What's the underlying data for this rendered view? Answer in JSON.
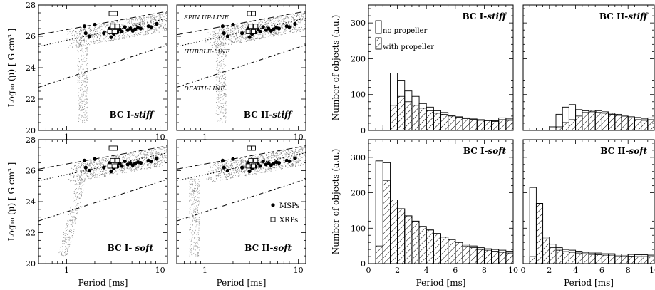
{
  "chart_data": [
    {
      "panel": "a",
      "type": "scatter",
      "title_prefix": "BC I-",
      "title_suffix": "stiff",
      "xscale": "log",
      "xlim": [
        0.5,
        12
      ],
      "ylim": [
        20,
        28
      ],
      "xticks": [
        1,
        10
      ],
      "yticks": [
        20,
        22,
        24,
        26,
        28
      ],
      "xlabel": "",
      "ylabel": "Log₁₀ (μ) [ G cm³ ]",
      "lines": [
        {
          "name": "SPIN UP-LINE",
          "style": "dashed",
          "x": [
            0.5,
            12
          ],
          "y": [
            26.1,
            27.6
          ]
        },
        {
          "name": "HUBBLE-LINE",
          "style": "dotted",
          "x": [
            0.5,
            12
          ],
          "y": [
            25.35,
            27.15
          ]
        },
        {
          "name": "DEATH-LINE",
          "style": "dashdot",
          "x": [
            0.5,
            12
          ],
          "y": [
            22.75,
            25.45
          ]
        }
      ],
      "msps": [
        [
          1.55,
          26.65
        ],
        [
          1.6,
          26.2
        ],
        [
          1.75,
          26.0
        ],
        [
          2.0,
          26.75
        ],
        [
          2.5,
          26.2
        ],
        [
          2.9,
          26.5
        ],
        [
          3.0,
          25.95
        ],
        [
          3.2,
          26.15
        ],
        [
          3.3,
          26.35
        ],
        [
          3.5,
          26.25
        ],
        [
          3.7,
          26.45
        ],
        [
          3.9,
          26.3
        ],
        [
          4.2,
          26.6
        ],
        [
          4.5,
          26.4
        ],
        [
          4.8,
          26.5
        ],
        [
          5.1,
          26.35
        ],
        [
          5.4,
          26.45
        ],
        [
          5.8,
          26.55
        ],
        [
          6.2,
          26.5
        ],
        [
          7.5,
          26.65
        ],
        [
          8.0,
          26.6
        ],
        [
          9.2,
          26.8
        ]
      ],
      "xrps": [
        [
          3.0,
          27.45
        ],
        [
          3.3,
          27.45
        ],
        [
          3.1,
          26.65
        ],
        [
          3.5,
          26.65
        ],
        [
          2.9,
          26.3
        ],
        [
          3.3,
          26.3
        ]
      ]
    },
    {
      "panel": "b",
      "type": "scatter",
      "title_prefix": "BC II-",
      "title_suffix": "stiff",
      "xscale": "log",
      "xlim": [
        0.5,
        12
      ],
      "ylim": [
        20,
        28
      ],
      "xticks": [
        1,
        10
      ],
      "yticks": [
        20,
        22,
        24,
        26,
        28
      ],
      "xlabel": "",
      "ylabel": "",
      "annotations": [
        "SPIN UP-LINE",
        "HUBBLE-LINE",
        "DEATH-LINE"
      ],
      "lines": [
        {
          "style": "dashed",
          "x": [
            0.5,
            12
          ],
          "y": [
            26.1,
            27.6
          ]
        },
        {
          "style": "dotted",
          "x": [
            0.5,
            12
          ],
          "y": [
            25.35,
            27.15
          ]
        },
        {
          "style": "dashdot",
          "x": [
            0.5,
            12
          ],
          "y": [
            22.75,
            25.45
          ]
        }
      ],
      "msps": [
        [
          1.55,
          26.65
        ],
        [
          1.6,
          26.2
        ],
        [
          1.75,
          26.0
        ],
        [
          2.0,
          26.75
        ],
        [
          2.5,
          26.2
        ],
        [
          2.9,
          26.5
        ],
        [
          3.0,
          25.95
        ],
        [
          3.2,
          26.15
        ],
        [
          3.3,
          26.35
        ],
        [
          3.5,
          26.25
        ],
        [
          3.7,
          26.45
        ],
        [
          3.9,
          26.3
        ],
        [
          4.2,
          26.6
        ],
        [
          4.5,
          26.4
        ],
        [
          4.8,
          26.5
        ],
        [
          5.1,
          26.35
        ],
        [
          5.4,
          26.45
        ],
        [
          5.8,
          26.55
        ],
        [
          6.2,
          26.5
        ],
        [
          7.5,
          26.65
        ],
        [
          8.0,
          26.6
        ],
        [
          9.2,
          26.8
        ]
      ],
      "xrps": [
        [
          3.0,
          27.45
        ],
        [
          3.3,
          27.45
        ],
        [
          3.1,
          26.65
        ],
        [
          3.5,
          26.65
        ],
        [
          2.9,
          26.3
        ],
        [
          3.3,
          26.3
        ]
      ]
    },
    {
      "panel": "c",
      "type": "scatter",
      "title_prefix": "BC I- ",
      "title_suffix": "soft",
      "xscale": "log",
      "xlim": [
        0.5,
        12
      ],
      "ylim": [
        20,
        28
      ],
      "xticks": [
        1,
        10
      ],
      "yticks": [
        20,
        22,
        24,
        26,
        28
      ],
      "xlabel": "Period [ms]",
      "ylabel": "Log₁₀ (μ) [ G cm³ ]",
      "lines": [
        {
          "style": "dashed",
          "x": [
            0.5,
            12
          ],
          "y": [
            26.1,
            27.6
          ]
        },
        {
          "style": "dotted",
          "x": [
            0.5,
            12
          ],
          "y": [
            25.35,
            27.15
          ]
        },
        {
          "style": "dashdot",
          "x": [
            0.5,
            12
          ],
          "y": [
            22.75,
            25.45
          ]
        }
      ],
      "msps": [
        [
          1.55,
          26.65
        ],
        [
          1.6,
          26.2
        ],
        [
          1.75,
          26.0
        ],
        [
          2.0,
          26.75
        ],
        [
          2.5,
          26.2
        ],
        [
          2.9,
          26.5
        ],
        [
          3.0,
          25.95
        ],
        [
          3.2,
          26.15
        ],
        [
          3.3,
          26.35
        ],
        [
          3.5,
          26.25
        ],
        [
          3.7,
          26.45
        ],
        [
          3.9,
          26.3
        ],
        [
          4.2,
          26.6
        ],
        [
          4.5,
          26.4
        ],
        [
          4.8,
          26.5
        ],
        [
          5.1,
          26.35
        ],
        [
          5.4,
          26.45
        ],
        [
          5.8,
          26.55
        ],
        [
          6.2,
          26.5
        ],
        [
          7.5,
          26.65
        ],
        [
          8.0,
          26.6
        ],
        [
          9.2,
          26.8
        ]
      ],
      "xrps": [
        [
          3.0,
          27.45
        ],
        [
          3.3,
          27.45
        ],
        [
          3.1,
          26.65
        ],
        [
          3.5,
          26.65
        ],
        [
          2.9,
          26.3
        ],
        [
          3.3,
          26.3
        ]
      ]
    },
    {
      "panel": "d",
      "type": "scatter",
      "title_prefix": "BC II-",
      "title_suffix": "soft",
      "xscale": "log",
      "xlim": [
        0.5,
        12
      ],
      "ylim": [
        20,
        28
      ],
      "xticks": [
        1,
        10
      ],
      "yticks": [
        20,
        22,
        24,
        26,
        28
      ],
      "xlabel": "Period [ms]",
      "ylabel": "",
      "legend": {
        "placement": "lower-right",
        "entries": [
          "MSPs",
          "XRPs"
        ]
      },
      "lines": [
        {
          "style": "dashed",
          "x": [
            0.5,
            12
          ],
          "y": [
            26.1,
            27.6
          ]
        },
        {
          "style": "dotted",
          "x": [
            0.5,
            12
          ],
          "y": [
            25.35,
            27.15
          ]
        },
        {
          "style": "dashdot",
          "x": [
            0.5,
            12
          ],
          "y": [
            22.75,
            25.45
          ]
        }
      ],
      "msps": [
        [
          1.55,
          26.65
        ],
        [
          1.6,
          26.2
        ],
        [
          1.75,
          26.0
        ],
        [
          2.0,
          26.75
        ],
        [
          2.5,
          26.2
        ],
        [
          2.9,
          26.5
        ],
        [
          3.0,
          25.95
        ],
        [
          3.2,
          26.15
        ],
        [
          3.3,
          26.35
        ],
        [
          3.5,
          26.25
        ],
        [
          3.7,
          26.45
        ],
        [
          3.9,
          26.3
        ],
        [
          4.2,
          26.6
        ],
        [
          4.5,
          26.4
        ],
        [
          4.8,
          26.5
        ],
        [
          5.1,
          26.35
        ],
        [
          5.4,
          26.45
        ],
        [
          5.8,
          26.55
        ],
        [
          6.2,
          26.5
        ],
        [
          7.5,
          26.65
        ],
        [
          8.0,
          26.6
        ],
        [
          9.2,
          26.8
        ]
      ],
      "xrps": [
        [
          3.0,
          27.45
        ],
        [
          3.3,
          27.45
        ],
        [
          3.1,
          26.65
        ],
        [
          3.5,
          26.65
        ],
        [
          2.9,
          26.3
        ],
        [
          3.3,
          26.3
        ]
      ]
    },
    {
      "panel": "e",
      "type": "bar",
      "title_prefix": "BC I-",
      "title_suffix": "stiff",
      "xlim": [
        0,
        10
      ],
      "ylim": [
        0,
        350
      ],
      "yticks": [
        0,
        100,
        200,
        300
      ],
      "xticks": [
        0,
        2,
        4,
        6,
        8,
        10
      ],
      "xlabel": "",
      "ylabel": "Number of objects (a.u.)",
      "legend": {
        "placement": "top-left",
        "entries": [
          "no propeller",
          "with propeller"
        ]
      },
      "bin_edges": [
        0.5,
        1,
        1.5,
        2,
        2.5,
        3,
        3.5,
        4,
        4.5,
        5,
        5.5,
        6,
        6.5,
        7,
        7.5,
        8,
        8.5,
        9,
        9.5,
        10
      ],
      "series": [
        {
          "name": "no propeller",
          "values": [
            0,
            15,
            160,
            140,
            110,
            95,
            75,
            65,
            55,
            50,
            42,
            38,
            35,
            32,
            30,
            28,
            27,
            35,
            32
          ]
        },
        {
          "name": "with propeller",
          "values": [
            0,
            0,
            70,
            95,
            80,
            70,
            62,
            55,
            48,
            45,
            40,
            36,
            33,
            30,
            28,
            27,
            25,
            30,
            28
          ]
        }
      ]
    },
    {
      "panel": "f",
      "type": "bar",
      "title_prefix": "BC II-",
      "title_suffix": "stiff",
      "xlim": [
        0,
        10
      ],
      "ylim": [
        0,
        350
      ],
      "yticks": [
        0,
        100,
        200,
        300
      ],
      "xticks": [
        0,
        2,
        4,
        6,
        8,
        10
      ],
      "xlabel": "",
      "ylabel": "",
      "bin_edges": [
        0.5,
        1,
        1.5,
        2,
        2.5,
        3,
        3.5,
        4,
        4.5,
        5,
        5.5,
        6,
        6.5,
        7,
        7.5,
        8,
        8.5,
        9,
        9.5,
        10
      ],
      "series": [
        {
          "name": "no propeller",
          "values": [
            0,
            0,
            0,
            10,
            45,
            65,
            72,
            58,
            55,
            52,
            50,
            48,
            45,
            42,
            40,
            38,
            36,
            32,
            35
          ]
        },
        {
          "name": "with propeller",
          "values": [
            0,
            0,
            0,
            0,
            10,
            22,
            30,
            40,
            50,
            56,
            55,
            52,
            48,
            45,
            40,
            35,
            30,
            28,
            30
          ]
        }
      ]
    },
    {
      "panel": "g",
      "type": "bar",
      "title_prefix": "BC I-",
      "title_suffix": "soft",
      "xlim": [
        0,
        10
      ],
      "ylim": [
        0,
        350
      ],
      "yticks": [
        0,
        100,
        200,
        300
      ],
      "xticks": [
        0,
        2,
        4,
        6,
        8,
        10
      ],
      "xlabel": "Period [ms]",
      "ylabel": "Number of objects (a.u.)",
      "bin_edges": [
        0.5,
        1,
        1.5,
        2,
        2.5,
        3,
        3.5,
        4,
        4.5,
        5,
        5.5,
        6,
        6.5,
        7,
        7.5,
        8,
        8.5,
        9,
        9.5,
        10
      ],
      "series": [
        {
          "name": "no propeller",
          "values": [
            290,
            285,
            180,
            155,
            135,
            120,
            105,
            95,
            85,
            75,
            68,
            60,
            55,
            50,
            45,
            42,
            40,
            38,
            35
          ]
        },
        {
          "name": "with propeller",
          "values": [
            50,
            235,
            180,
            155,
            135,
            120,
            105,
            95,
            85,
            75,
            68,
            60,
            50,
            45,
            40,
            38,
            35,
            32,
            30
          ]
        }
      ]
    },
    {
      "panel": "h",
      "type": "bar",
      "title_prefix": "BC II-",
      "title_suffix": "soft",
      "xlim": [
        0,
        10
      ],
      "ylim": [
        0,
        350
      ],
      "yticks": [
        0,
        100,
        200,
        300
      ],
      "xticks": [
        0,
        2,
        4,
        6,
        8,
        10
      ],
      "xlabel": "Period [ms]",
      "ylabel": "",
      "bin_edges": [
        0.5,
        1,
        1.5,
        2,
        2.5,
        3,
        3.5,
        4,
        4.5,
        5,
        5.5,
        6,
        6.5,
        7,
        7.5,
        8,
        8.5,
        9,
        9.5,
        10
      ],
      "series": [
        {
          "name": "no propeller",
          "values": [
            215,
            170,
            75,
            55,
            45,
            40,
            38,
            35,
            32,
            30,
            30,
            28,
            28,
            27,
            27,
            26,
            25,
            25,
            24
          ]
        },
        {
          "name": "with propeller",
          "values": [
            20,
            170,
            70,
            45,
            38,
            34,
            32,
            30,
            28,
            26,
            25,
            24,
            24,
            22,
            22,
            21,
            20,
            20,
            20
          ]
        }
      ]
    }
  ]
}
